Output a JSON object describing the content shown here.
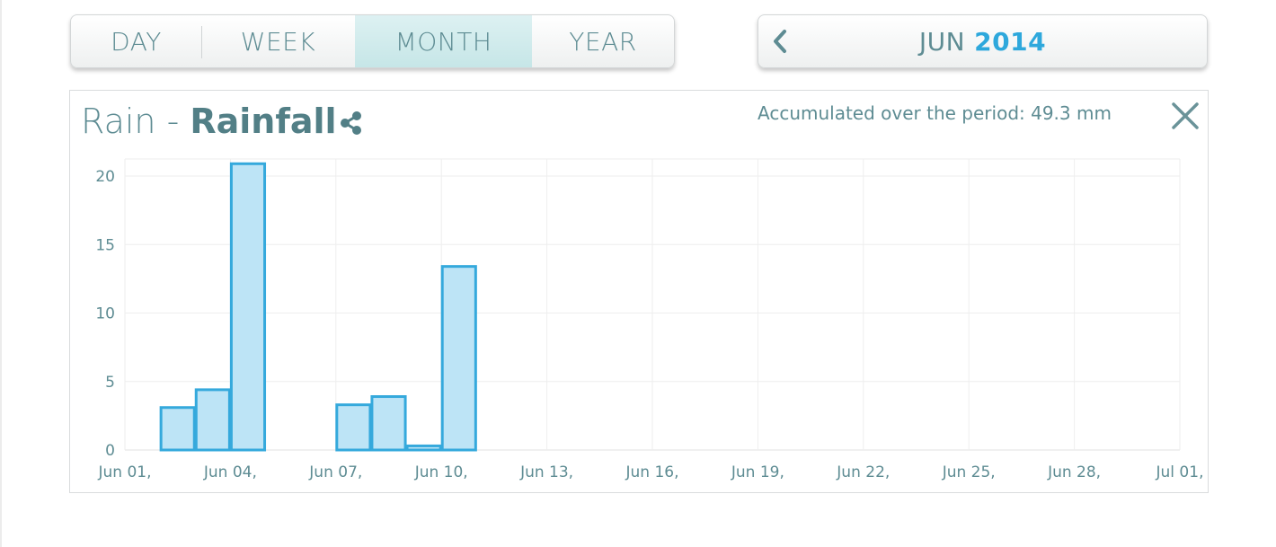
{
  "period_tabs": {
    "items": [
      {
        "label": "DAY",
        "active": false
      },
      {
        "label": "WEEK",
        "active": false
      },
      {
        "label": "MONTH",
        "active": true
      },
      {
        "label": "YEAR",
        "active": false
      }
    ]
  },
  "month_nav": {
    "month": "JUN",
    "year": "2014",
    "prev_icon": "chevron-left-icon"
  },
  "chart": {
    "title": "Rain - ",
    "subtitle": "Rainfall",
    "share_icon": "share-icon",
    "accumulated": "Accumulated over the period: 49.3 mm",
    "close_icon": "close-icon"
  },
  "colors": {
    "accent": "#2ea8dc",
    "bar_fill": "#bde4f6",
    "bar_stroke": "#35a9dc",
    "text": "#5e8c93",
    "grid": "#eeeeee"
  },
  "chart_data": {
    "type": "bar",
    "categories": [
      "Jun 01",
      "Jun 02",
      "Jun 03",
      "Jun 04",
      "Jun 05",
      "Jun 06",
      "Jun 07",
      "Jun 08",
      "Jun 09",
      "Jun 10"
    ],
    "values": [
      0,
      3.1,
      4.4,
      20.9,
      0,
      0,
      3.3,
      3.9,
      0.3,
      13.4
    ],
    "x_ticks": [
      "Jun 01,",
      "Jun 04,",
      "Jun 07,",
      "Jun 10,",
      "Jun 13,",
      "Jun 16,",
      "Jun 19,",
      "Jun 22,",
      "Jun 25,",
      "Jun 28,",
      "Jul 01,"
    ],
    "y_ticks": [
      "0",
      "5",
      "10",
      "15",
      "20"
    ],
    "ylim": [
      0,
      21.5
    ],
    "x_range_days": 30,
    "grid": true,
    "title": "Rain - Rainfall",
    "xlabel": "",
    "ylabel": ""
  }
}
